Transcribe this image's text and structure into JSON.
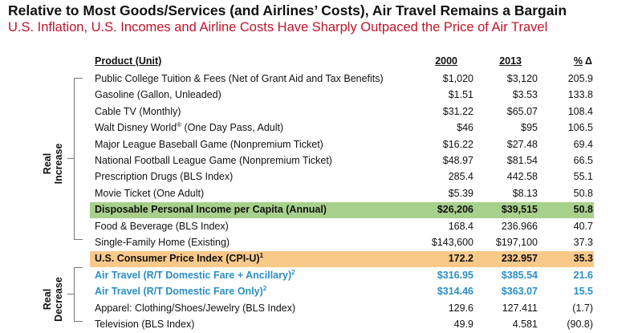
{
  "title": "Relative to Most Goods/Services (and Airlines’ Costs), Air Travel Remains a Bargain",
  "subtitle": "U.S. Inflation, U.S. Incomes and Airline Costs Have Sharply Outpaced the Price of Air Travel",
  "headers": {
    "product": "Product (Unit)",
    "y2000": "2000",
    "y2013": "2013",
    "pct": "%",
    "delta": "Δ"
  },
  "side_labels": {
    "increase_line1": "Real",
    "increase_line2": "Increase",
    "decrease_line1": "Real",
    "decrease_line2": "Decrease"
  },
  "rows": [
    {
      "product": "Public College Tuition & Fees (Net of Grant Aid and Tax Benefits)",
      "v2000": "$1,020",
      "v2013": "$3,120",
      "pct": "205.9"
    },
    {
      "product": "Gasoline (Gallon, Unleaded)",
      "v2000": "$1.51",
      "v2013": "$3.53",
      "pct": "133.8"
    },
    {
      "product": "Cable TV (Monthly)",
      "v2000": "$31.22",
      "v2013": "$65.07",
      "pct": "108.4"
    },
    {
      "product": "Walt Disney World",
      "sup": "®",
      "product_rest": " (One Day Pass, Adult)",
      "v2000": "$46",
      "v2013": "$95",
      "pct": "106.5"
    },
    {
      "product": "Major League Baseball Game (Nonpremium Ticket)",
      "v2000": "$16.22",
      "v2013": "$27.48",
      "pct": "69.4"
    },
    {
      "product": "National Football League Game (Nonpremium Ticket)",
      "v2000": "$48.97",
      "v2013": "$81.54",
      "pct": "66.5"
    },
    {
      "product": "Prescription Drugs (BLS Index)",
      "v2000": "285.4",
      "v2013": "442.58",
      "pct": "55.1"
    },
    {
      "product": "Movie Ticket (One Adult)",
      "v2000": "$5.39",
      "v2013": "$8.13",
      "pct": "50.8"
    },
    {
      "product": "Disposable Personal Income per Capita (Annual)",
      "v2000": "$26,206",
      "v2013": "$39,515",
      "pct": "50.8"
    },
    {
      "product": "Food & Beverage (BLS Index)",
      "v2000": "168.4",
      "v2013": "236.966",
      "pct": "40.7"
    },
    {
      "product": "Single-Family Home (Existing)",
      "v2000": "$143,600",
      "v2013": "$197,100",
      "pct": "37.3"
    },
    {
      "product": "U.S. Consumer Price Index (CPI-U)",
      "sup": "1",
      "product_rest": "",
      "v2000": "172.2",
      "v2013": "232.957",
      "pct": "35.3"
    },
    {
      "product": "Air Travel (R/T Domestic Fare + Ancillary)",
      "sup": "2",
      "product_rest": "",
      "v2000": "$316.95",
      "v2013": "$385.54",
      "pct": "21.6"
    },
    {
      "product": "Air Travel (R/T Domestic Fare Only)",
      "sup": "2",
      "product_rest": "",
      "v2000": "$314.46",
      "v2013": "$363.07",
      "pct": "15.5"
    },
    {
      "product": "Apparel: Clothing/Shoes/Jewelry (BLS Index)",
      "v2000": "129.6",
      "v2013": "127.411",
      "pct": "(1.7)"
    },
    {
      "product": "Television (BLS Index)",
      "v2000": "49.9",
      "v2013": "4.581",
      "pct": "(90.8)"
    }
  ],
  "colors": {
    "green_highlight": "#a8d08d",
    "orange_highlight": "#f9c98a",
    "blue_text": "#2a8fc4",
    "subtitle_red": "#c0152a"
  }
}
